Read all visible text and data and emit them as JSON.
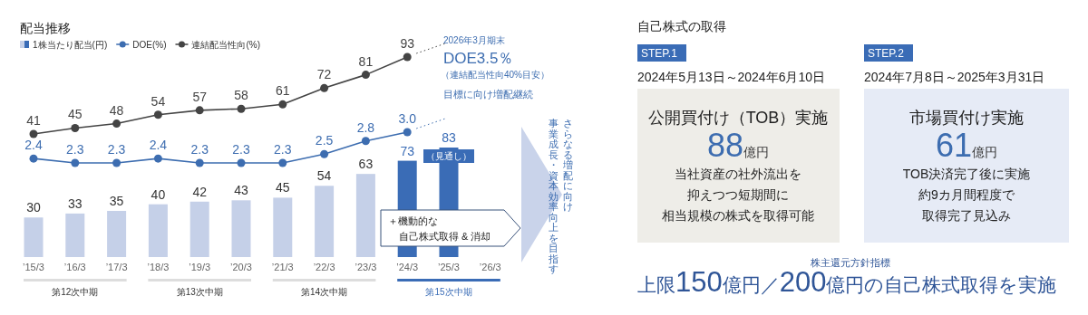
{
  "chart_data": [
    {
      "type": "line",
      "title": "配当推移",
      "legend": "top left",
      "marker": "circle",
      "tick_labels": false,
      "categories": [
        "’15/3",
        "’16/3",
        "’17/3",
        "’18/3",
        "’19/3",
        "’20/3",
        "’21/3",
        "’22/3",
        "’23/3",
        "’24/3",
        "’25/3",
        "’26/3"
      ],
      "series": [
        {
          "name": "連結配当性向(%)",
          "color": "#444444",
          "values": [
            41,
            45,
            48,
            54,
            57,
            58,
            61,
            72,
            81,
            93,
            null,
            null
          ],
          "value_labels": [
            "41",
            "45",
            "48",
            "54",
            "57",
            "58",
            "61",
            "72",
            "81",
            "93",
            null,
            null
          ]
        }
      ]
    },
    {
      "type": "line",
      "legend": "top left",
      "marker": "circle",
      "tick_labels": false,
      "categories": [
        "’15/3",
        "’16/3",
        "’17/3",
        "’18/3",
        "’19/3",
        "’20/3",
        "’21/3",
        "’22/3",
        "’23/3",
        "’24/3",
        "’25/3",
        "’26/3"
      ],
      "series": [
        {
          "name": "DOE(%)",
          "color": "#3d6db0",
          "values": [
            2.4,
            2.3,
            2.3,
            2.4,
            2.3,
            2.3,
            2.3,
            2.5,
            2.8,
            3.0,
            null,
            null
          ],
          "value_labels": [
            "2.4",
            "2.3",
            "2.3",
            "2.4",
            "2.3",
            "2.3",
            "2.3",
            "2.5",
            "2.8",
            "3.0",
            null,
            null
          ]
        }
      ]
    },
    {
      "type": "bar",
      "legend": "top left",
      "categories": [
        "’15/3",
        "’16/3",
        "’17/3",
        "’18/3",
        "’19/3",
        "’20/3",
        "’21/3",
        "’22/3",
        "’23/3",
        "’24/3",
        "’25/3",
        "’26/3"
      ],
      "series": [
        {
          "name": "1株当たり配当(円)",
          "colors": [
            "#c5d0e8",
            "#c5d0e8",
            "#c5d0e8",
            "#c5d0e8",
            "#c5d0e8",
            "#c5d0e8",
            "#c5d0e8",
            "#c5d0e8",
            "#c5d0e8",
            "#3a6cb6",
            "#3a6cb6",
            "#3a6cb6"
          ],
          "values": [
            30,
            33,
            35,
            40,
            42,
            43,
            45,
            54,
            63,
            73,
            83,
            null
          ],
          "value_labels": [
            "30",
            "33",
            "35",
            "40",
            "42",
            "43",
            "45",
            "54",
            "63",
            "73",
            "83",
            null
          ]
        }
      ],
      "annotations": [
        "2026年3月期末",
        "DOE3.5％",
        "（連結配当性向40%目安）",
        "目標に向け増配継続",
        {
          "text": "（見通し）",
          "x": "’25/3",
          "y": 83
        },
        "＋機動的な",
        "自己株式取得 & 消却",
        "さらなる増配に向け",
        "事業成長・資本効率向上を目指す",
        "第12次中期",
        "第13次中期",
        "第14次中期",
        "第15次中期"
      ]
    },
    {
      "type": "other",
      "title": "自己株式の取得",
      "annotations": [
        "STEP.1",
        "2024年5月13日～2024年6月10日",
        "公開買付け（TOB）実施",
        "88億円",
        "当社資産の社外流出を",
        "抑えつつ短期間に",
        "相当規模の株式を取得可能",
        "STEP.2",
        "2024年7月8日～2025年3月31日",
        "市場買付け実施",
        "61億円",
        "TOB決済完了後に実施",
        "約9カ月間程度で",
        "取得完了見込み",
        "株主還元方針指標",
        "上限150億円／200億円の自己株式取得を実施"
      ]
    }
  ]
}
